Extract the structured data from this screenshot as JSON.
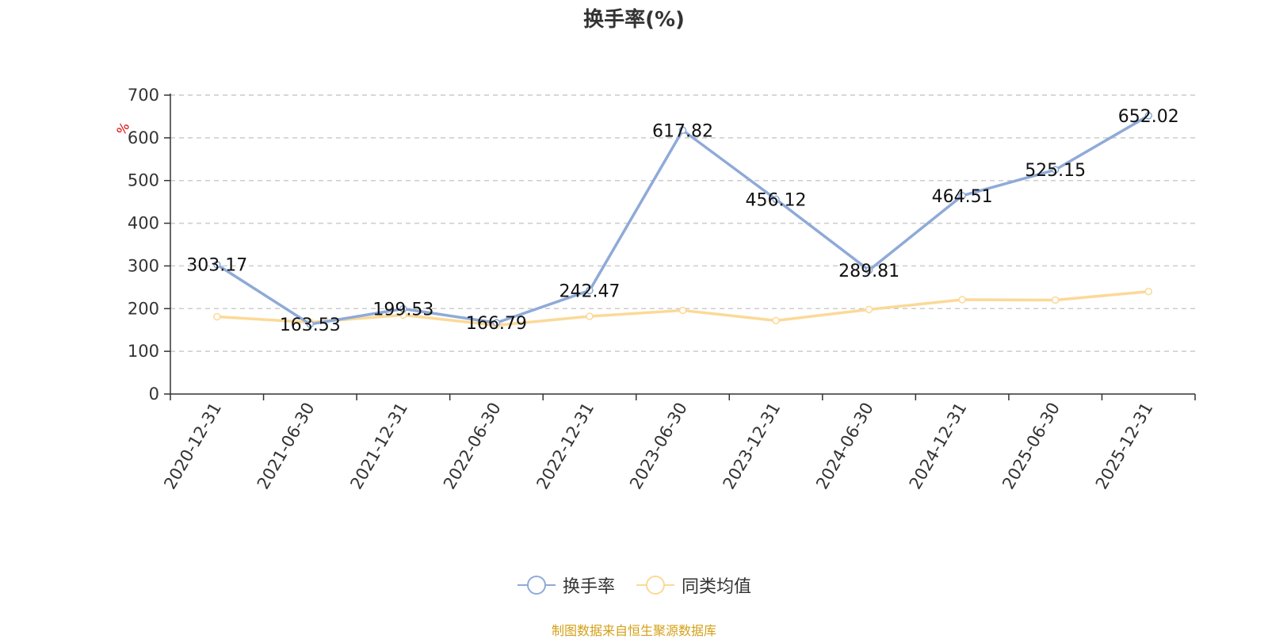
{
  "chart_data": {
    "type": "line",
    "title": "换手率(%)",
    "ylabel": "%",
    "xlabel": "",
    "ylim": [
      0,
      700
    ],
    "yticks": [
      0,
      100,
      200,
      300,
      400,
      500,
      600,
      700
    ],
    "categories": [
      "2020-12-31",
      "2021-06-30",
      "2021-12-31",
      "2022-06-30",
      "2022-12-31",
      "2023-06-30",
      "2023-12-31",
      "2024-06-30",
      "2024-12-31",
      "2025-06-30",
      "2025-12-31"
    ],
    "series": [
      {
        "name": "换手率",
        "color": "#8eaad8",
        "values": [
          303.17,
          163.53,
          199.53,
          166.79,
          242.47,
          617.82,
          456.12,
          289.81,
          464.51,
          525.15,
          652.02
        ],
        "labels": [
          "303.17",
          "163.53",
          "199.53",
          "166.79",
          "242.47",
          "617.82",
          "456.12",
          "289.81",
          "464.51",
          "525.15",
          "652.02"
        ]
      },
      {
        "name": "同类均值",
        "color": "#fcd998",
        "values": [
          181,
          168,
          185,
          161,
          182,
          196,
          172,
          198,
          221,
          220,
          240
        ]
      }
    ],
    "grid": true,
    "legend_position": "bottom-center"
  },
  "source_note": "制图数据来自恒生聚源数据库"
}
